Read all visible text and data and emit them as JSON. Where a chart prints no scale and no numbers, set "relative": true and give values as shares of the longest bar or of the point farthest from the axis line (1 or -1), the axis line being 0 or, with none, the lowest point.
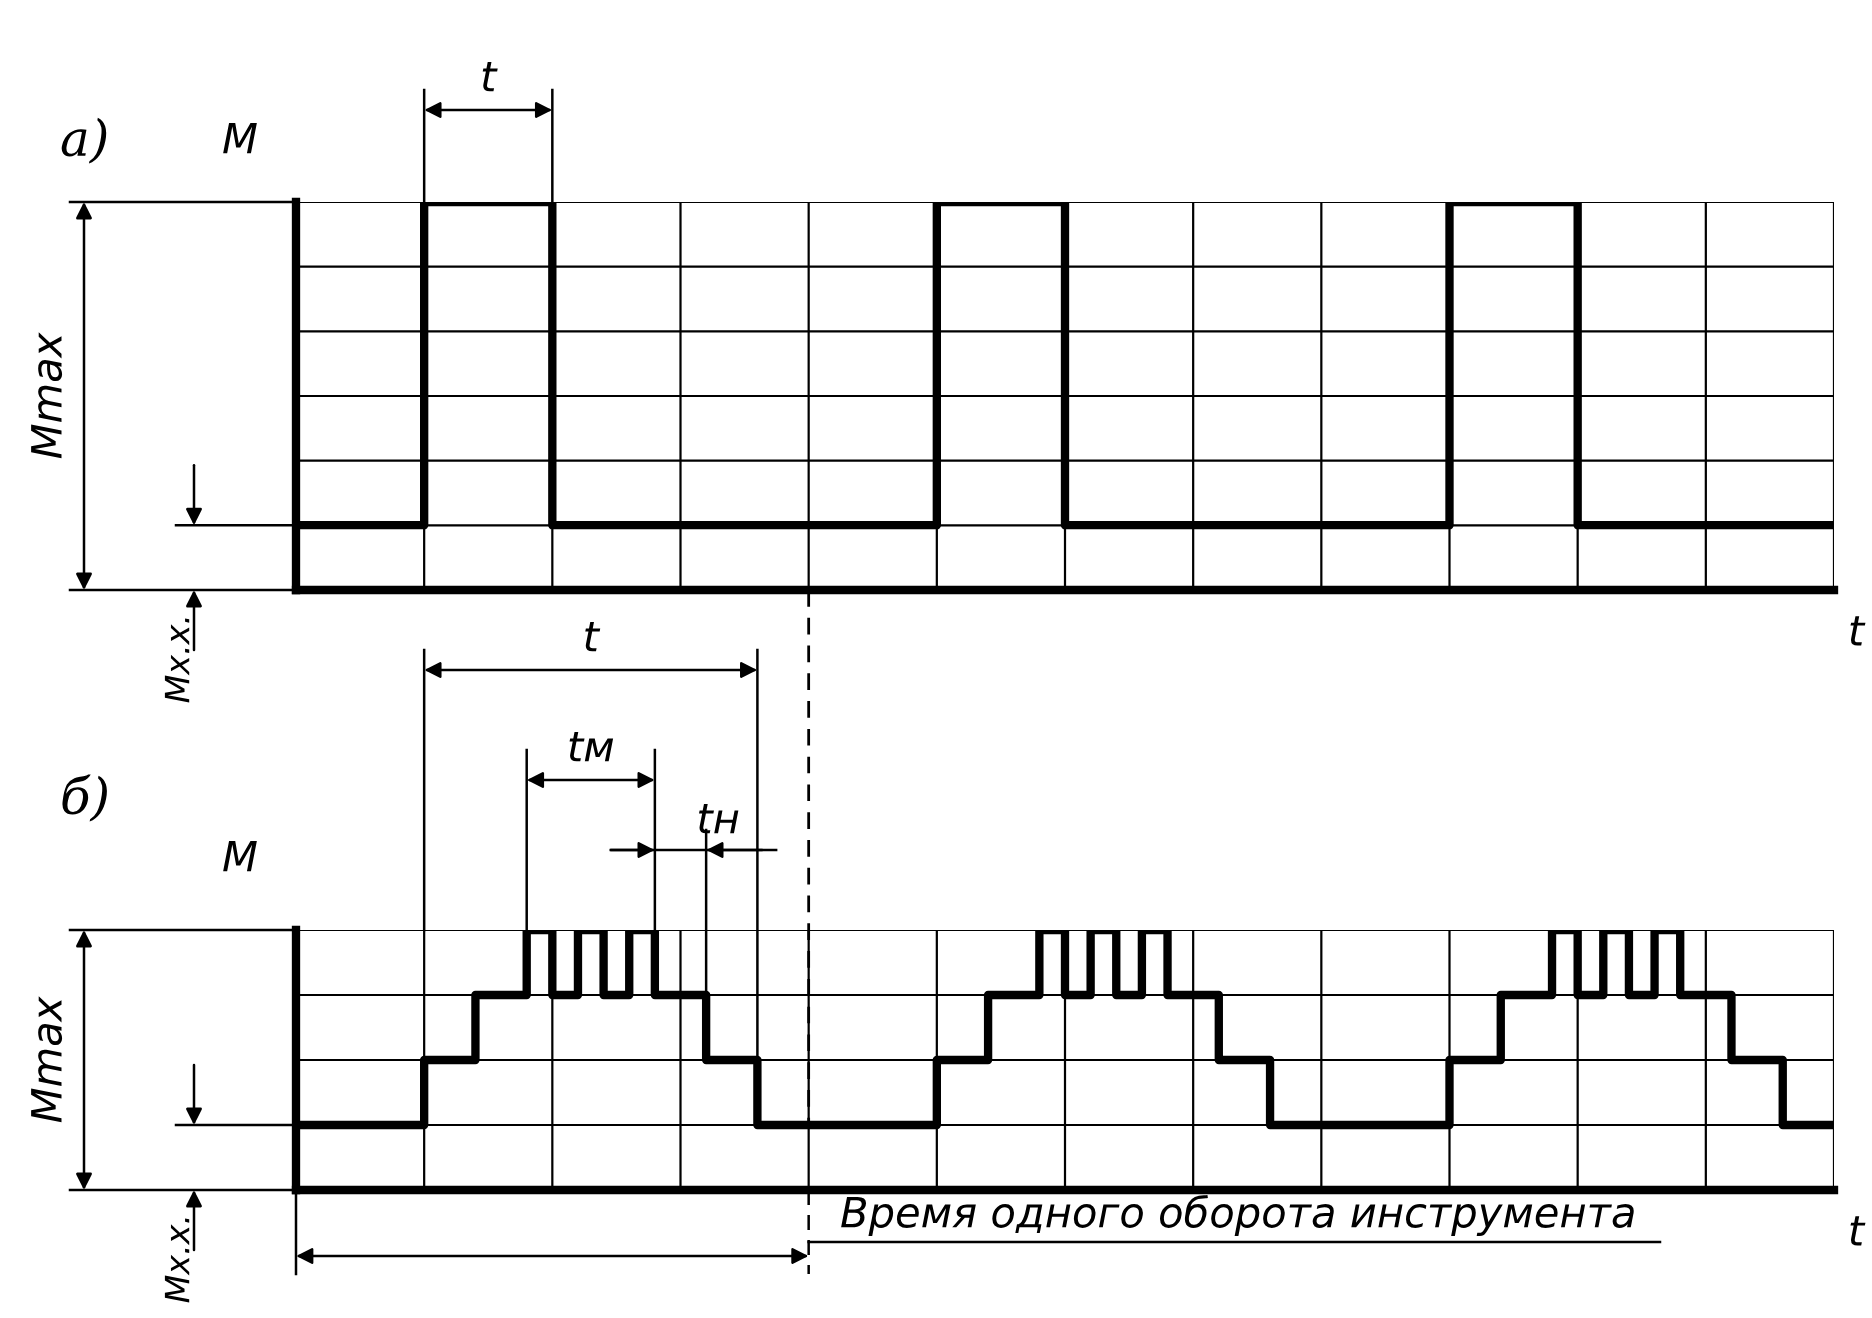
{
  "chart_data": [
    {
      "type": "step",
      "relative": true,
      "ylabel": "M",
      "xlabel": "t",
      "grid": true,
      "line_style": "solid",
      "marker": "none",
      "categories": [
        null,
        null,
        null,
        null,
        null,
        null,
        null,
        null,
        null,
        null,
        null,
        null,
        null
      ],
      "series": [
        {
          "color": "#000000",
          "values": [
            0.167,
            1,
            0.167,
            0.167,
            0.167,
            1,
            0.167,
            0.167,
            0.167,
            1,
            0.167,
            0.167,
            0.167
          ]
        }
      ],
      "annotations": [
        "а)",
        "Mmax",
        "Mx.x.",
        "t"
      ]
    },
    {
      "type": "step",
      "relative": true,
      "ylabel": "M",
      "xlabel": "t",
      "grid": true,
      "line_style": "solid",
      "marker": "none",
      "categories": [
        null,
        null,
        null,
        null,
        null,
        null,
        null,
        null,
        null,
        null,
        null,
        null,
        null,
        null,
        null,
        null,
        null,
        null,
        null,
        null,
        null,
        null,
        null,
        null,
        null,
        null,
        null,
        null,
        null,
        null,
        null,
        null,
        null,
        null,
        null,
        null,
        null,
        null,
        null,
        null,
        null,
        null,
        null,
        null,
        null,
        null,
        null,
        null,
        null,
        null,
        null,
        null,
        null,
        null,
        null,
        null,
        null,
        null,
        null,
        null,
        null
      ],
      "series": [
        {
          "color": "#000000",
          "values": [
            0.25,
            0.25,
            0.25,
            0.25,
            0.25,
            0.5,
            0.5,
            0.75,
            0.75,
            1,
            0.75,
            1,
            0.75,
            1,
            0.75,
            0.75,
            0.5,
            0.5,
            0.25,
            0.25,
            0.25,
            0.25,
            0.25,
            0.25,
            0.25,
            0.5,
            0.5,
            0.75,
            0.75,
            1,
            0.75,
            1,
            0.75,
            1,
            0.75,
            0.75,
            0.5,
            0.5,
            0.25,
            0.25,
            0.25,
            0.25,
            0.25,
            0.25,
            0.25,
            0.5,
            0.5,
            0.75,
            0.75,
            1,
            0.75,
            1,
            0.75,
            1,
            0.75,
            0.75,
            0.5,
            0.5,
            0.25,
            0.25,
            0.25
          ]
        }
      ],
      "annotations": [
        "б)",
        "Mmax",
        "Mx.x.",
        "t",
        "tм",
        "tн",
        "Время одного оборота инструмента"
      ]
    }
  ]
}
